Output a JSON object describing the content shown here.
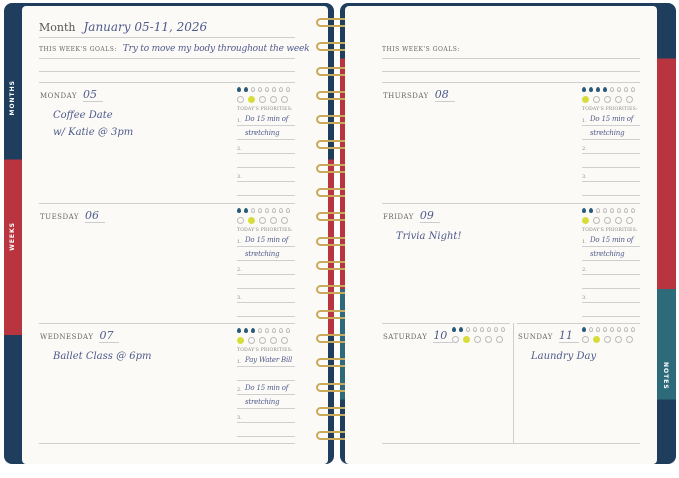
{
  "tabs": {
    "months": "MONTHS",
    "weeks": "WEEKS",
    "notes": "NOTES"
  },
  "left": {
    "month_label": "Month",
    "month_value": "January 05-11, 2026",
    "goals_label": "THIS WEEK'S GOALS:",
    "goals_value": "Try to move my body throughout the week"
  },
  "right": {
    "goals_label": "THIS WEEK'S GOALS:",
    "goals_value": ""
  },
  "priorities_label": "TODAY'S PRIORITIES:",
  "colors": {
    "water_filled": "#2a5a7a",
    "mood_selected": "#d6dc3c",
    "ink": "#4d5a8c"
  },
  "days": [
    {
      "name": "MONDAY",
      "date": "05",
      "note": [
        "Coffee Date",
        "w/ Katie @ 3pm"
      ],
      "water": 2,
      "mood": 2,
      "priorities": [
        "Do 15 min of",
        "stretching",
        "",
        ""
      ]
    },
    {
      "name": "TUESDAY",
      "date": "06",
      "note": [],
      "water": 2,
      "mood": 2,
      "priorities": [
        "Do 15 min of",
        "stretching",
        "",
        ""
      ]
    },
    {
      "name": "WEDNESDAY",
      "date": "07",
      "note": [
        "Ballet Class @ 6pm"
      ],
      "water": 3,
      "mood": 1,
      "priorities": [
        "Pay Water Bill",
        "",
        "Do 15 min of",
        "stretching"
      ]
    },
    {
      "name": "THURSDAY",
      "date": "08",
      "note": [],
      "water": 4,
      "mood": 1,
      "priorities": [
        "Do 15 min of",
        "stretching",
        "",
        ""
      ]
    },
    {
      "name": "FRIDAY",
      "date": "09",
      "note": [
        "Trivia Night!"
      ],
      "water": 2,
      "mood": 1,
      "priorities": [
        "Do 15 min of",
        "stretching",
        "",
        ""
      ]
    },
    {
      "name": "SATURDAY",
      "date": "10",
      "note": [],
      "water": 2,
      "mood": 2
    },
    {
      "name": "SUNDAY",
      "date": "11",
      "note": [
        "Laundry Day"
      ],
      "water": 1,
      "mood": 2
    }
  ]
}
